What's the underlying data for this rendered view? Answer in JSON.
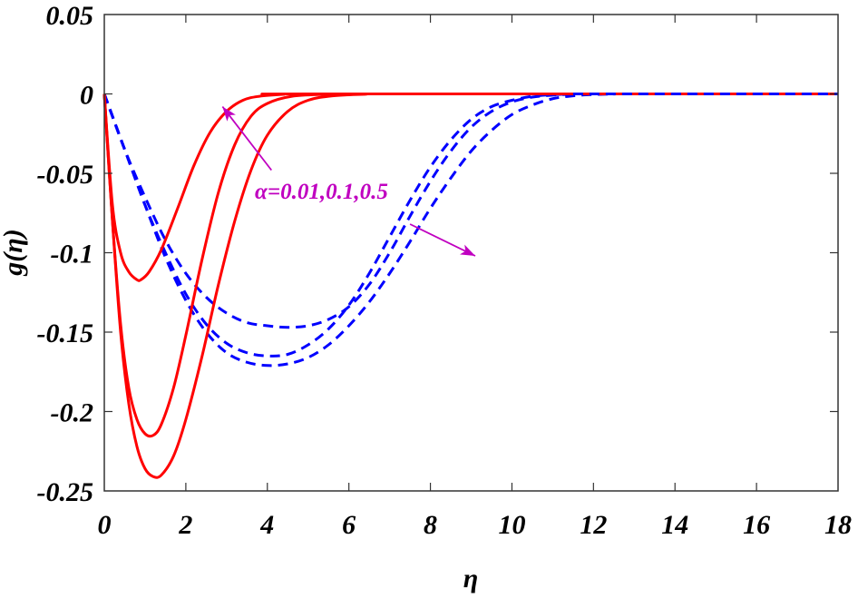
{
  "chart_data": {
    "type": "line",
    "title": "",
    "xlabel": "η",
    "ylabel": "g(η)",
    "xlim": [
      0,
      18
    ],
    "ylim": [
      -0.25,
      0.05
    ],
    "x_ticks": [
      0,
      2,
      4,
      6,
      8,
      10,
      12,
      14,
      16,
      18
    ],
    "x_tick_labels": [
      "0",
      "2",
      "4",
      "6",
      "8",
      "10",
      "12",
      "14",
      "16",
      "18"
    ],
    "y_ticks": [
      0.05,
      0,
      -0.05,
      -0.1,
      -0.15,
      -0.2,
      -0.25
    ],
    "y_tick_labels": [
      "0.05",
      "0",
      "-0.05",
      "-0.1",
      "-0.15",
      "-0.2",
      "-0.25"
    ],
    "grid": false,
    "legend": null,
    "annotation": {
      "text": "α=0.01,0.1,0.5",
      "color": "#c000c0",
      "arrows": [
        {
          "from": [
            4.1,
            -0.048
          ],
          "to": [
            2.9,
            -0.008
          ]
        },
        {
          "from": [
            7.5,
            -0.082
          ],
          "to": [
            9.1,
            -0.102
          ]
        }
      ]
    },
    "series": [
      {
        "name": "solid α=0.01",
        "color": "#ff0000",
        "style": "solid",
        "x": [
          0,
          0.2,
          0.4,
          0.6,
          0.8,
          0.9,
          1.1,
          1.4,
          1.8,
          2.2,
          2.6,
          3.0,
          3.4,
          3.8,
          4.4,
          5.0,
          18
        ],
        "y": [
          0,
          -0.07,
          -0.1,
          -0.112,
          -0.117,
          -0.117,
          -0.112,
          -0.098,
          -0.072,
          -0.045,
          -0.024,
          -0.011,
          -0.004,
          -0.0015,
          -0.0003,
          0,
          0
        ]
      },
      {
        "name": "solid α=0.1",
        "color": "#ff0000",
        "style": "solid",
        "x": [
          0,
          0.2,
          0.4,
          0.6,
          0.8,
          1.0,
          1.2,
          1.4,
          1.7,
          2.0,
          2.4,
          2.8,
          3.2,
          3.6,
          4.0,
          4.6,
          5.4,
          6.2,
          18
        ],
        "y": [
          0,
          -0.08,
          -0.145,
          -0.185,
          -0.205,
          -0.214,
          -0.215,
          -0.208,
          -0.185,
          -0.152,
          -0.104,
          -0.062,
          -0.032,
          -0.014,
          -0.006,
          -0.0015,
          -0.0003,
          0,
          0
        ]
      },
      {
        "name": "solid α=0.5",
        "color": "#ff0000",
        "style": "solid",
        "x": [
          0,
          0.2,
          0.4,
          0.6,
          0.8,
          1.0,
          1.2,
          1.4,
          1.7,
          2.0,
          2.4,
          2.8,
          3.2,
          3.6,
          4.0,
          4.5,
          5.0,
          5.6,
          6.4,
          7.2,
          18
        ],
        "y": [
          0,
          -0.08,
          -0.15,
          -0.195,
          -0.222,
          -0.236,
          -0.241,
          -0.24,
          -0.228,
          -0.205,
          -0.165,
          -0.12,
          -0.08,
          -0.048,
          -0.026,
          -0.011,
          -0.004,
          -0.0012,
          -0.0002,
          0,
          0
        ]
      },
      {
        "name": "dashed α=0.01",
        "color": "#0000ff",
        "style": "dashed",
        "x": [
          0,
          0.5,
          1.0,
          1.5,
          2.0,
          2.5,
          3.0,
          3.5,
          4.0,
          4.5,
          5.0,
          5.5,
          6.0,
          6.5,
          7.0,
          7.5,
          8.0,
          8.5,
          9.0,
          9.5,
          10.0,
          10.5,
          11.0,
          11.5,
          12.0,
          18
        ],
        "y": [
          0,
          -0.035,
          -0.065,
          -0.092,
          -0.113,
          -0.128,
          -0.138,
          -0.144,
          -0.146,
          -0.147,
          -0.146,
          -0.142,
          -0.134,
          -0.12,
          -0.1,
          -0.077,
          -0.055,
          -0.036,
          -0.021,
          -0.011,
          -0.005,
          -0.002,
          -0.0008,
          -0.0002,
          0,
          0
        ]
      },
      {
        "name": "dashed α=0.1",
        "color": "#0000ff",
        "style": "dashed",
        "x": [
          0,
          0.5,
          1.0,
          1.5,
          2.0,
          2.5,
          3.0,
          3.5,
          4.0,
          4.5,
          5.0,
          5.5,
          6.0,
          6.5,
          7.0,
          7.5,
          8.0,
          8.5,
          9.0,
          9.5,
          10.0,
          10.5,
          11.0,
          11.5,
          12.0,
          18
        ],
        "y": [
          0,
          -0.035,
          -0.07,
          -0.1,
          -0.126,
          -0.145,
          -0.157,
          -0.163,
          -0.165,
          -0.164,
          -0.158,
          -0.148,
          -0.133,
          -0.113,
          -0.09,
          -0.067,
          -0.046,
          -0.029,
          -0.016,
          -0.008,
          -0.004,
          -0.0015,
          -0.0005,
          -0.0001,
          0,
          0
        ]
      },
      {
        "name": "dashed α=0.5",
        "color": "#0000ff",
        "style": "dashed",
        "x": [
          0,
          0.5,
          1.0,
          1.5,
          2.0,
          2.5,
          3.0,
          3.5,
          4.0,
          4.5,
          5.0,
          5.5,
          6.0,
          6.5,
          7.0,
          7.5,
          8.0,
          8.5,
          9.0,
          9.5,
          10.0,
          10.5,
          11.0,
          11.5,
          12.0,
          12.5,
          13.0,
          18
        ],
        "y": [
          0,
          -0.035,
          -0.07,
          -0.103,
          -0.13,
          -0.15,
          -0.163,
          -0.169,
          -0.171,
          -0.17,
          -0.166,
          -0.158,
          -0.146,
          -0.131,
          -0.113,
          -0.093,
          -0.072,
          -0.053,
          -0.036,
          -0.023,
          -0.013,
          -0.007,
          -0.003,
          -0.0012,
          -0.0004,
          -0.0001,
          0,
          0
        ]
      }
    ]
  }
}
